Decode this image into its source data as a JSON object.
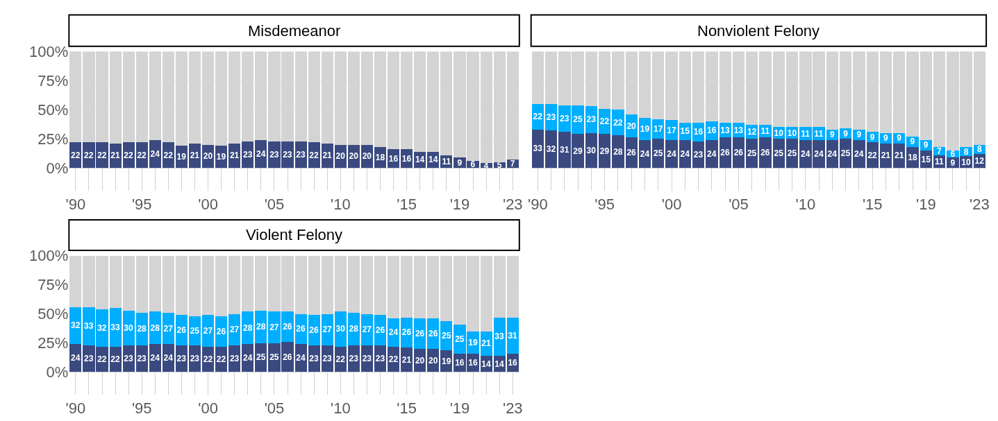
{
  "chart_data": [
    {
      "type": "bar",
      "title": "Misdemeanor",
      "stacked": true,
      "grid": "y",
      "ylim": [
        0,
        100
      ],
      "yticks": [
        {
          "value": 0,
          "label": "0%"
        },
        {
          "value": 25,
          "label": "25%"
        },
        {
          "value": 50,
          "label": "50%"
        },
        {
          "value": 75,
          "label": "75%"
        },
        {
          "value": 100,
          "label": "100%"
        }
      ],
      "categories": [
        "'90",
        null,
        null,
        null,
        null,
        "'95",
        null,
        null,
        null,
        null,
        "'00",
        null,
        null,
        null,
        null,
        "'05",
        null,
        null,
        null,
        null,
        "'10",
        null,
        null,
        null,
        null,
        "'15",
        null,
        null,
        null,
        "'19",
        null,
        null,
        null,
        "'23"
      ],
      "series": [
        {
          "color": "#3a4a80",
          "values": [
            22,
            22,
            22,
            21,
            22,
            22,
            24,
            22,
            19,
            21,
            20,
            19,
            21,
            23,
            24,
            23,
            23,
            23,
            22,
            21,
            20,
            20,
            20,
            18,
            16,
            16,
            14,
            14,
            11,
            9,
            6,
            4,
            5,
            7
          ],
          "value_labels": [
            "22",
            "22",
            "22",
            "21",
            "22",
            "22",
            "24",
            "22",
            "19",
            "21",
            "20",
            "19",
            "21",
            "23",
            "24",
            "23",
            "23",
            "23",
            "22",
            "21",
            "20",
            "20",
            "20",
            "18",
            "16",
            "16",
            "14",
            "14",
            "11",
            "9",
            "6",
            "4",
            "5",
            "7"
          ]
        },
        {
          "color": "#d4d4d4",
          "values": [
            78,
            78,
            78,
            79,
            78,
            78,
            76,
            78,
            81,
            79,
            80,
            81,
            79,
            77,
            76,
            77,
            77,
            77,
            78,
            79,
            80,
            80,
            80,
            82,
            84,
            84,
            86,
            86,
            89,
            91,
            94,
            96,
            95,
            93
          ]
        }
      ]
    },
    {
      "type": "bar",
      "title": "Nonviolent Felony",
      "stacked": true,
      "grid": "y",
      "ylim": [
        0,
        100
      ],
      "tick_labels": "x",
      "yticks": [
        {
          "value": 0,
          "label": null
        },
        {
          "value": 25,
          "label": null
        },
        {
          "value": 50,
          "label": null
        },
        {
          "value": 75,
          "label": null
        },
        {
          "value": 100,
          "label": null
        }
      ],
      "categories": [
        "'90",
        null,
        null,
        null,
        null,
        "'95",
        null,
        null,
        null,
        null,
        "'00",
        null,
        null,
        null,
        null,
        "'05",
        null,
        null,
        null,
        null,
        "'10",
        null,
        null,
        null,
        null,
        "'15",
        null,
        null,
        null,
        "'19",
        null,
        null,
        null,
        "'23"
      ],
      "series": [
        {
          "color": "#3a4a80",
          "values": [
            33,
            32,
            31,
            29,
            30,
            29,
            28,
            26,
            24,
            25,
            24,
            24,
            23,
            24,
            26,
            26,
            25,
            26,
            25,
            25,
            24,
            24,
            24,
            25,
            24,
            22,
            21,
            21,
            18,
            15,
            11,
            9,
            10,
            12
          ],
          "value_labels": [
            "33",
            "32",
            "31",
            "29",
            "30",
            "29",
            "28",
            "26",
            "24",
            "25",
            "24",
            "24",
            "23",
            "24",
            "26",
            "26",
            "25",
            "26",
            "25",
            "25",
            "24",
            "24",
            "24",
            "25",
            "24",
            "22",
            "21",
            "21",
            "18",
            "15",
            "11",
            "9",
            "10",
            "12"
          ]
        },
        {
          "color": "#00aeff",
          "values": [
            22,
            23,
            23,
            25,
            23,
            22,
            22,
            20,
            19,
            17,
            17,
            15,
            16,
            16,
            13,
            13,
            12,
            11,
            10,
            10,
            11,
            11,
            9,
            9,
            9,
            9,
            9,
            9,
            9,
            9,
            7,
            6,
            8,
            8
          ],
          "value_labels": [
            "22",
            "23",
            "23",
            "25",
            "23",
            "22",
            "22",
            "20",
            "19",
            "17",
            "17",
            "15",
            "16",
            "16",
            "13",
            "13",
            "12",
            "11",
            "10",
            "10",
            "11",
            "11",
            "9",
            "9",
            "9",
            "9",
            "9",
            "9",
            "9",
            "9",
            "7",
            "6",
            "8",
            "8"
          ]
        },
        {
          "color": "#d4d4d4",
          "values": [
            45,
            45,
            46,
            46,
            47,
            49,
            50,
            54,
            57,
            58,
            59,
            61,
            61,
            60,
            61,
            61,
            63,
            63,
            65,
            65,
            65,
            65,
            67,
            66,
            67,
            69,
            70,
            70,
            73,
            76,
            82,
            85,
            82,
            80
          ]
        }
      ]
    },
    {
      "type": "bar",
      "title": "Violent Felony",
      "stacked": true,
      "grid": "y",
      "ylim": [
        0,
        100
      ],
      "yticks": [
        {
          "value": 0,
          "label": "0%"
        },
        {
          "value": 25,
          "label": "25%"
        },
        {
          "value": 50,
          "label": "50%"
        },
        {
          "value": 75,
          "label": "75%"
        },
        {
          "value": 100,
          "label": "100%"
        }
      ],
      "categories": [
        "'90",
        null,
        null,
        null,
        null,
        "'95",
        null,
        null,
        null,
        null,
        "'00",
        null,
        null,
        null,
        null,
        "'05",
        null,
        null,
        null,
        null,
        "'10",
        null,
        null,
        null,
        null,
        "'15",
        null,
        null,
        null,
        "'19",
        null,
        null,
        null,
        "'23"
      ],
      "series": [
        {
          "color": "#3a4a80",
          "values": [
            24,
            23,
            22,
            22,
            23,
            23,
            24,
            24,
            23,
            23,
            22,
            22,
            23,
            24,
            25,
            25,
            26,
            24,
            23,
            23,
            22,
            23,
            23,
            23,
            22,
            21,
            20,
            20,
            19,
            16,
            16,
            14,
            14,
            16
          ],
          "value_labels": [
            "24",
            "23",
            "22",
            "22",
            "23",
            "23",
            "24",
            "24",
            "23",
            "23",
            "22",
            "22",
            "23",
            "24",
            "25",
            "25",
            "26",
            "24",
            "23",
            "23",
            "22",
            "23",
            "23",
            "23",
            "22",
            "21",
            "20",
            "20",
            "19",
            "16",
            "16",
            "14",
            "14",
            "16"
          ]
        },
        {
          "color": "#00aeff",
          "values": [
            32,
            33,
            32,
            33,
            30,
            28,
            28,
            27,
            26,
            25,
            27,
            26,
            27,
            28,
            28,
            27,
            26,
            26,
            26,
            27,
            30,
            28,
            27,
            26,
            24,
            26,
            26,
            26,
            25,
            25,
            19,
            21,
            33,
            31
          ],
          "value_labels": [
            "32",
            "33",
            "32",
            "33",
            "30",
            "28",
            "28",
            "27",
            "26",
            "25",
            "27",
            "26",
            "27",
            "28",
            "28",
            "27",
            "26",
            "26",
            "26",
            "27",
            "30",
            "28",
            "27",
            "26",
            "24",
            "26",
            "26",
            "26",
            "25",
            "25",
            "19",
            "21",
            "33",
            "31"
          ]
        },
        {
          "color": "#d4d4d4",
          "values": [
            44,
            44,
            46,
            45,
            47,
            49,
            48,
            49,
            51,
            52,
            51,
            52,
            50,
            48,
            47,
            48,
            48,
            50,
            51,
            50,
            48,
            49,
            50,
            51,
            54,
            53,
            54,
            54,
            56,
            59,
            65,
            65,
            53,
            53
          ]
        }
      ]
    }
  ]
}
